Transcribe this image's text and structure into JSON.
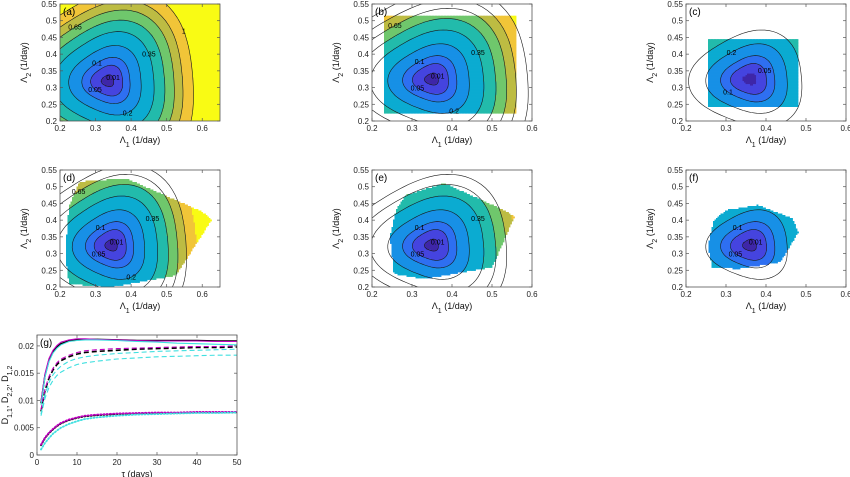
{
  "chart_data": [
    {
      "type": "contour",
      "panel_label": "(a)",
      "xlabel": "Λ1 (1/day)",
      "ylabel": "Λ2 (1/day)",
      "xlim": [
        0.2,
        0.65
      ],
      "ylim": [
        0.2,
        0.55
      ],
      "xticks": [
        "0.2",
        "0.3",
        "0.4",
        "0.5",
        "0.6"
      ],
      "yticks": [
        "0.2",
        "0.25",
        "0.3",
        "0.35",
        "0.4",
        "0.45",
        "0.5",
        "0.55"
      ],
      "domain": "full",
      "center": [
        0.335,
        0.32
      ],
      "contour_levels": [
        "0.01",
        "0.05",
        "0.1",
        "0.2",
        "0.35",
        "0.5",
        "0.65",
        "0.8",
        "1"
      ]
    },
    {
      "type": "contour",
      "panel_label": "(b)",
      "xlabel": "Λ1 (1/day)",
      "ylabel": "Λ2 (1/day)",
      "xlim": [
        0.2,
        0.6
      ],
      "ylim": [
        0.2,
        0.55
      ],
      "xticks": [
        "0.2",
        "0.3",
        "0.4",
        "0.5",
        "0.6"
      ],
      "yticks": [
        "0.2",
        "0.25",
        "0.3",
        "0.35",
        "0.4",
        "0.45",
        "0.5",
        "0.55"
      ],
      "domain": "rect",
      "region_x": [
        0.23,
        0.56
      ],
      "region_y": [
        0.225,
        0.515
      ],
      "center": [
        0.35,
        0.325
      ],
      "contour_levels": [
        "0.01",
        "0.05",
        "0.1",
        "0.2",
        "0.35",
        "0.5",
        "0.65",
        "0.8",
        "1"
      ]
    },
    {
      "type": "contour",
      "panel_label": "(c)",
      "xlabel": "Λ1 (1/day)",
      "ylabel": "Λ2 (1/day)",
      "xlim": [
        0.2,
        0.6
      ],
      "ylim": [
        0.2,
        0.55
      ],
      "xticks": [
        "0.2",
        "0.3",
        "0.4",
        "0.5",
        "0.6"
      ],
      "yticks": [
        "0.2",
        "0.25",
        "0.3",
        "0.35",
        "0.4",
        "0.45",
        "0.5",
        "0.55"
      ],
      "domain": "rect",
      "region_x": [
        0.255,
        0.48
      ],
      "region_y": [
        0.245,
        0.445
      ],
      "center": [
        0.36,
        0.325
      ],
      "contour_levels": [
        "0.05",
        "0.1",
        "0.2",
        "0.35"
      ]
    },
    {
      "type": "contour",
      "panel_label": "(d)",
      "xlabel": "Λ1 (1/day)",
      "ylabel": "Λ2 (1/day)",
      "xlim": [
        0.2,
        0.65
      ],
      "ylim": [
        0.2,
        0.55
      ],
      "xticks": [
        "0.2",
        "0.3",
        "0.4",
        "0.5",
        "0.6"
      ],
      "yticks": [
        "0.2",
        "0.25",
        "0.3",
        "0.35",
        "0.4",
        "0.45",
        "0.5",
        "0.55"
      ],
      "domain": "polygon",
      "center": [
        0.345,
        0.325
      ],
      "polygon": [
        [
          0.255,
          0.515
        ],
        [
          0.385,
          0.525
        ],
        [
          0.6,
          0.425
        ],
        [
          0.625,
          0.4
        ],
        [
          0.525,
          0.235
        ],
        [
          0.34,
          0.2
        ],
        [
          0.225,
          0.21
        ],
        [
          0.215,
          0.3
        ],
        [
          0.225,
          0.44
        ]
      ],
      "contour_levels": [
        "0.01",
        "0.05",
        "0.1",
        "0.2",
        "0.35",
        "0.5",
        "0.65",
        "0.8"
      ]
    },
    {
      "type": "contour",
      "panel_label": "(e)",
      "xlabel": "Λ1 (1/day)",
      "ylabel": "Λ2 (1/day)",
      "xlim": [
        0.2,
        0.6
      ],
      "ylim": [
        0.2,
        0.55
      ],
      "xticks": [
        "0.2",
        "0.3",
        "0.4",
        "0.5",
        "0.6"
      ],
      "yticks": [
        "0.2",
        "0.25",
        "0.3",
        "0.35",
        "0.4",
        "0.45",
        "0.5",
        "0.55"
      ],
      "domain": "polygon",
      "center": [
        0.35,
        0.325
      ],
      "polygon": [
        [
          0.285,
          0.475
        ],
        [
          0.38,
          0.51
        ],
        [
          0.53,
          0.43
        ],
        [
          0.555,
          0.41
        ],
        [
          0.5,
          0.26
        ],
        [
          0.33,
          0.225
        ],
        [
          0.255,
          0.24
        ],
        [
          0.245,
          0.35
        ],
        [
          0.26,
          0.43
        ]
      ],
      "contour_levels": [
        "0.01",
        "0.05",
        "0.1",
        "0.2",
        "0.35",
        "0.5",
        "0.65"
      ]
    },
    {
      "type": "contour",
      "panel_label": "(f)",
      "xlabel": "Λ1 (1/day)",
      "ylabel": "Λ2 (1/day)",
      "xlim": [
        0.2,
        0.6
      ],
      "ylim": [
        0.2,
        0.55
      ],
      "xticks": [
        "0.2",
        "0.3",
        "0.4",
        "0.5",
        "0.6"
      ],
      "yticks": [
        "0.2",
        "0.25",
        "0.3",
        "0.35",
        "0.4",
        "0.45",
        "0.5",
        "0.55"
      ],
      "domain": "polygon",
      "center": [
        0.36,
        0.325
      ],
      "polygon": [
        [
          0.3,
          0.43
        ],
        [
          0.38,
          0.445
        ],
        [
          0.465,
          0.405
        ],
        [
          0.48,
          0.365
        ],
        [
          0.435,
          0.275
        ],
        [
          0.33,
          0.255
        ],
        [
          0.265,
          0.26
        ],
        [
          0.255,
          0.325
        ],
        [
          0.27,
          0.4
        ]
      ],
      "contour_levels": [
        "0.01",
        "0.05",
        "0.1",
        "0.2"
      ]
    },
    {
      "type": "line",
      "panel_label": "(g)",
      "xlabel": "τ (days)",
      "ylabel": "D1,1, D2,2, D1,2",
      "xlim": [
        0,
        50
      ],
      "ylim": [
        0,
        0.022
      ],
      "xticks": [
        "0",
        "10",
        "20",
        "30",
        "40",
        "50"
      ],
      "yticks": [
        "0",
        "0.005",
        "0.01",
        "0.015",
        "0.02"
      ],
      "series": [
        {
          "style": "solid",
          "color": "#000000",
          "x": [
            1,
            2,
            3,
            4,
            5,
            6,
            8,
            10,
            12,
            15,
            20,
            25,
            30,
            35,
            40,
            45,
            50
          ],
          "y": [
            0.0095,
            0.0146,
            0.0174,
            0.0189,
            0.0198,
            0.0204,
            0.0209,
            0.0211,
            0.0212,
            0.0212,
            0.0211,
            0.021,
            0.021,
            0.021,
            0.021,
            0.0209,
            0.0209
          ]
        },
        {
          "style": "solid",
          "color": "#c000c0",
          "x": [
            1,
            2,
            3,
            4,
            5,
            6,
            8,
            10,
            12,
            15,
            20,
            25,
            30,
            35,
            40,
            45,
            50
          ],
          "y": [
            0.0098,
            0.0149,
            0.0177,
            0.0192,
            0.0201,
            0.0207,
            0.0211,
            0.0213,
            0.0213,
            0.0212,
            0.0211,
            0.021,
            0.0209,
            0.0209,
            0.0209,
            0.0208,
            0.0208
          ]
        },
        {
          "style": "solid",
          "color": "#40e0e0",
          "x": [
            1,
            2,
            3,
            4,
            5,
            6,
            8,
            10,
            12,
            15,
            20,
            25,
            30,
            35,
            40,
            45,
            50
          ],
          "y": [
            0.0092,
            0.0143,
            0.0171,
            0.0187,
            0.0196,
            0.0202,
            0.0208,
            0.021,
            0.0211,
            0.0211,
            0.021,
            0.0208,
            0.0207,
            0.0205,
            0.0204,
            0.0203,
            0.0202
          ]
        },
        {
          "style": "dashed",
          "color": "#000000",
          "x": [
            1,
            2,
            3,
            4,
            5,
            6,
            8,
            10,
            12,
            15,
            20,
            25,
            30,
            35,
            40,
            45,
            50
          ],
          "y": [
            0.008,
            0.0118,
            0.0141,
            0.0156,
            0.0166,
            0.0173,
            0.018,
            0.0185,
            0.0188,
            0.019,
            0.0192,
            0.0194,
            0.0195,
            0.0196,
            0.0197,
            0.0197,
            0.0198
          ]
        },
        {
          "style": "dashed",
          "color": "#c000c0",
          "x": [
            1,
            2,
            3,
            4,
            5,
            6,
            8,
            10,
            12,
            15,
            20,
            25,
            30,
            35,
            40,
            45,
            50
          ],
          "y": [
            0.0083,
            0.0121,
            0.0144,
            0.0159,
            0.0169,
            0.0176,
            0.0183,
            0.0188,
            0.0191,
            0.0193,
            0.0195,
            0.0196,
            0.0197,
            0.0198,
            0.0199,
            0.0199,
            0.02
          ]
        },
        {
          "style": "dashed",
          "color": "#40e0e0",
          "x": [
            1,
            2,
            3,
            4,
            5,
            6,
            8,
            10,
            12,
            15,
            20,
            25,
            30,
            35,
            40,
            45,
            50
          ],
          "y": [
            0.0075,
            0.0111,
            0.0133,
            0.0147,
            0.0156,
            0.0163,
            0.0172,
            0.0177,
            0.018,
            0.0183,
            0.0186,
            0.0188,
            0.019,
            0.0191,
            0.0192,
            0.0193,
            0.0194
          ]
        },
        {
          "style": "dashed",
          "color": "#40e0e0",
          "x": [
            1,
            2,
            3,
            4,
            5,
            6,
            8,
            10,
            12,
            15,
            20,
            25,
            30,
            35,
            40,
            45,
            50
          ],
          "y": [
            0.0072,
            0.0104,
            0.0124,
            0.0137,
            0.0146,
            0.0152,
            0.016,
            0.0166,
            0.0169,
            0.0172,
            0.0176,
            0.0178,
            0.018,
            0.0181,
            0.0182,
            0.0183,
            0.0183
          ]
        },
        {
          "style": "dotted",
          "color": "#000000",
          "x": [
            1,
            2,
            3,
            4,
            5,
            6,
            8,
            10,
            12,
            15,
            20,
            25,
            30,
            35,
            40,
            45,
            50
          ],
          "y": [
            0.0018,
            0.0031,
            0.004,
            0.0047,
            0.0053,
            0.0058,
            0.0064,
            0.0068,
            0.0071,
            0.0073,
            0.0075,
            0.0076,
            0.0077,
            0.0077,
            0.0078,
            0.0078,
            0.0078
          ]
        },
        {
          "style": "dotted",
          "color": "#c000c0",
          "x": [
            1,
            2,
            3,
            4,
            5,
            6,
            8,
            10,
            12,
            15,
            20,
            25,
            30,
            35,
            40,
            45,
            50
          ],
          "y": [
            0.0019,
            0.0032,
            0.0041,
            0.0048,
            0.0054,
            0.0059,
            0.0065,
            0.0069,
            0.0072,
            0.0074,
            0.0076,
            0.0077,
            0.0078,
            0.0078,
            0.0079,
            0.0079,
            0.0079
          ]
        },
        {
          "style": "dotted",
          "color": "#40e0e0",
          "x": [
            1,
            2,
            3,
            4,
            5,
            6,
            8,
            10,
            12,
            15,
            20,
            25,
            30,
            35,
            40,
            45,
            50
          ],
          "y": [
            0.001,
            0.0022,
            0.0031,
            0.0039,
            0.0045,
            0.005,
            0.0057,
            0.0062,
            0.0066,
            0.0069,
            0.0072,
            0.0074,
            0.0075,
            0.0076,
            0.0077,
            0.0077,
            0.0078
          ]
        }
      ]
    }
  ]
}
